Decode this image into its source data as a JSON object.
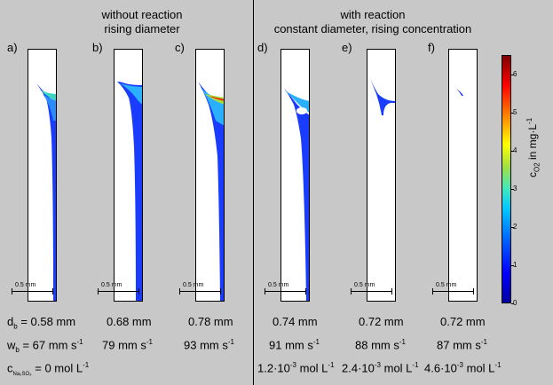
{
  "headers": {
    "left": {
      "line1": "without reaction",
      "line2": "rising diameter"
    },
    "right": {
      "line1": "with reaction",
      "line2": "constant diameter, rising concentration"
    }
  },
  "panel_labels": [
    "a)",
    "b)",
    "c)",
    "d)",
    "e)",
    "f)"
  ],
  "scale_bar": "0.5 mm",
  "rows": {
    "db": {
      "label": "d",
      "sub": "b",
      "values": [
        "= 0.58 mm",
        "0.68 mm",
        "0.78 mm",
        "0.74 mm",
        "0.72 mm",
        "0.72 mm"
      ]
    },
    "wb": {
      "label": "w",
      "sub": "b",
      "prefix": "= 67 mm s",
      "values": [
        "79 mm s",
        "93 mm s",
        "91 mm s",
        "88 mm s",
        "87 mm s"
      ],
      "exp": "-1"
    },
    "c": {
      "label": "c",
      "sub": "Na₂SO₃",
      "first": "= 0 mol L",
      "values": [
        "1.2·10",
        "2.4·10",
        "4.6·10"
      ],
      "exp10": "-3",
      "unit": " mol L",
      "unit_exp": "-1"
    }
  },
  "colorbar": {
    "ticks": [
      "0",
      "1",
      "2",
      "3",
      "4",
      "5",
      "6"
    ],
    "label": "c",
    "label_sub": "O2",
    "label_unit": " in mg·L",
    "label_exp": "-1",
    "colors": [
      "#0000a0",
      "#0000ff",
      "#00c8ff",
      "#a0e040",
      "#ffff00",
      "#ff8000",
      "#800000"
    ]
  }
}
